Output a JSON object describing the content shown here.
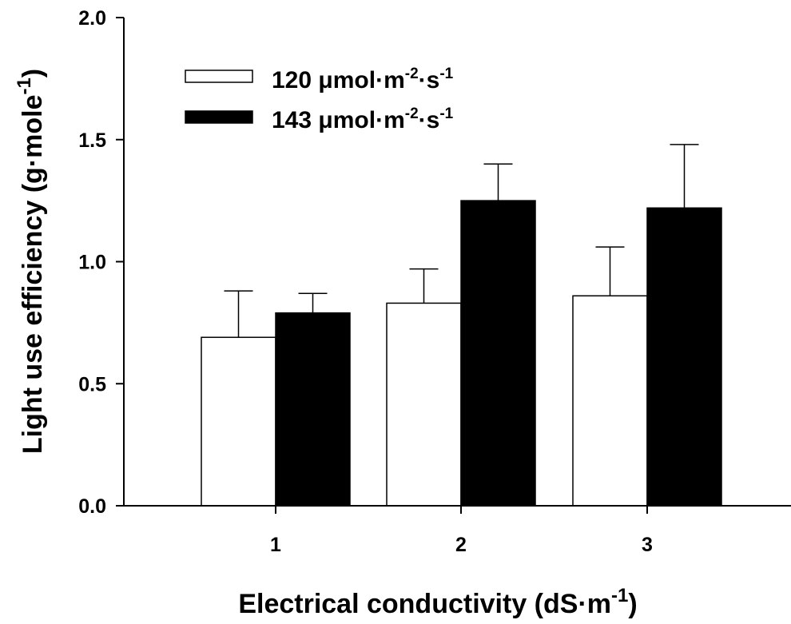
{
  "chart_data": {
    "type": "bar",
    "title": "",
    "xlabel": "Electrical conductivity (dS·m",
    "xlabel_sup": "-1",
    "xlabel_end": ")",
    "ylabel": "Light use efficiency (g·mole",
    "ylabel_sup": "-1",
    "ylabel_end": ")",
    "ylim": [
      0,
      2.0
    ],
    "yticks": [
      "0.0",
      "0.5",
      "1.0",
      "1.5",
      "2.0"
    ],
    "ytick_values": [
      0,
      0.5,
      1.0,
      1.5,
      2.0
    ],
    "categories": [
      "1",
      "2",
      "3"
    ],
    "grid": false,
    "legend_position": "top-left",
    "series": [
      {
        "name": "120 μmol·m-2·s-1",
        "label_main": "120 μmol·m",
        "label_sup1": "-2",
        "label_mid": "·s",
        "label_sup2": "-1",
        "color": "#ffffff",
        "values": [
          0.69,
          0.83,
          0.86
        ],
        "errors": [
          0.19,
          0.14,
          0.2
        ]
      },
      {
        "name": "143 μmol·m-2·s-1",
        "label_main": "143  μmol·m",
        "label_sup1": "-2",
        "label_mid": "·s",
        "label_sup2": "-1",
        "color": "#000000",
        "values": [
          0.79,
          1.25,
          1.22
        ],
        "errors": [
          0.08,
          0.15,
          0.26
        ]
      }
    ]
  }
}
